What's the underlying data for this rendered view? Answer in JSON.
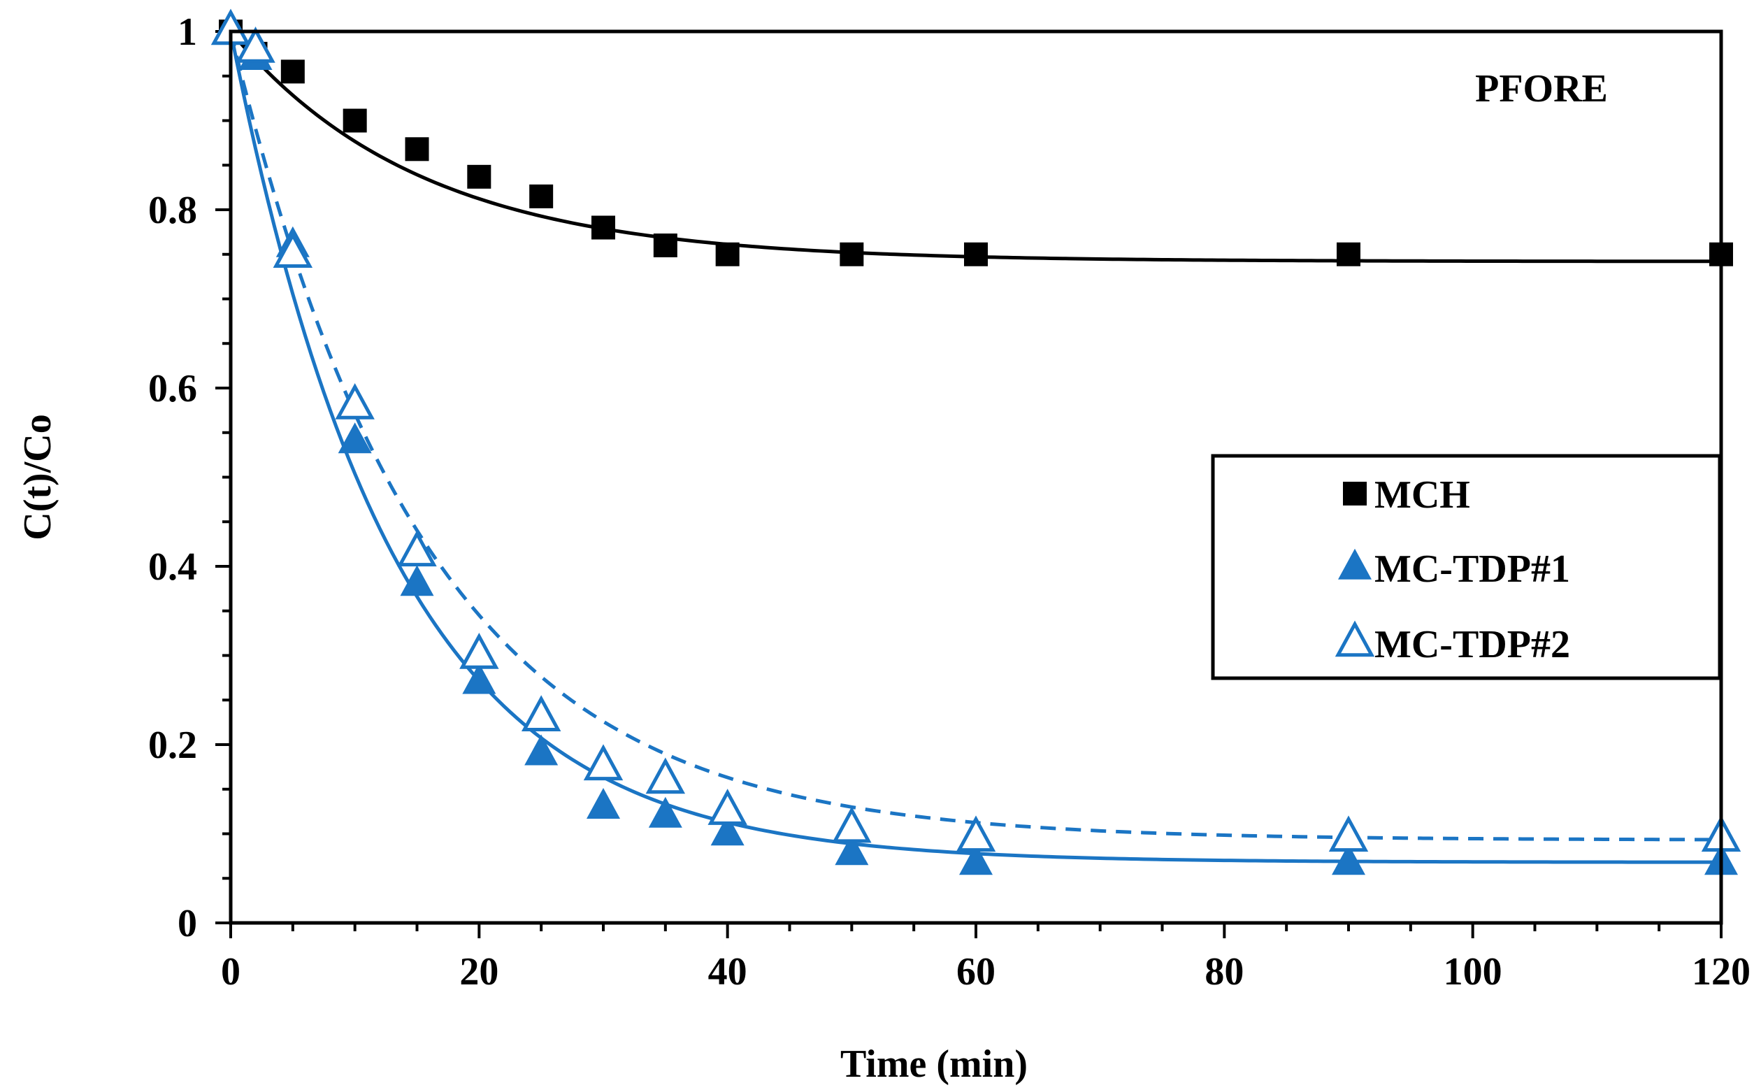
{
  "chart_data": {
    "type": "scatter",
    "title": "",
    "annotation": "PFORE",
    "xlabel": "Time (min)",
    "ylabel": "C(t)/Co",
    "xlim": [
      0,
      120
    ],
    "ylim": [
      0,
      1
    ],
    "x_ticks": [
      0,
      20,
      40,
      60,
      80,
      100,
      120
    ],
    "x_tick_labels": [
      "0",
      "20",
      "40",
      "60",
      "80",
      "100",
      "120"
    ],
    "y_ticks": [
      0,
      0.2,
      0.4,
      0.6,
      0.8,
      1
    ],
    "y_tick_labels": [
      "0",
      "0.2",
      "0.4",
      "0.6",
      "0.8",
      "1"
    ],
    "x_minor_step": 5,
    "y_minor_step": 0.05,
    "grid": false,
    "legend_position": "right-middle",
    "series": [
      {
        "name": "MCH",
        "marker": "square-filled",
        "color": "#000000",
        "x": [
          0,
          2,
          5,
          10,
          15,
          20,
          25,
          30,
          35,
          40,
          50,
          60,
          90,
          120
        ],
        "y": [
          1.0,
          0.975,
          0.955,
          0.9,
          0.868,
          0.837,
          0.815,
          0.78,
          0.76,
          0.75,
          0.75,
          0.75,
          0.75,
          0.75
        ],
        "fit": {
          "model": "C = qe + (1 - qe) * exp(-k t)",
          "qe": 0.742,
          "k": 0.065,
          "line_style": "solid"
        }
      },
      {
        "name": "MC-TDP#1",
        "marker": "triangle-filled",
        "color": "#1B75C4",
        "x": [
          0,
          2,
          5,
          10,
          15,
          20,
          25,
          30,
          35,
          40,
          50,
          60,
          90,
          120
        ],
        "y": [
          1.0,
          0.97,
          0.76,
          0.54,
          0.38,
          0.27,
          0.19,
          0.13,
          0.12,
          0.1,
          0.078,
          0.067,
          0.067,
          0.067
        ],
        "fit": {
          "model": "C = qe + (1 - qe) * exp(-k t)",
          "qe": 0.068,
          "k": 0.076,
          "line_style": "solid"
        }
      },
      {
        "name": "MC-TDP#2",
        "marker": "triangle-open",
        "color": "#1B75C4",
        "x": [
          0,
          2,
          5,
          10,
          15,
          20,
          25,
          30,
          35,
          40,
          50,
          60,
          90,
          120
        ],
        "y": [
          1.0,
          0.98,
          0.75,
          0.58,
          0.415,
          0.3,
          0.23,
          0.175,
          0.16,
          0.125,
          0.105,
          0.095,
          0.095,
          0.095
        ],
        "fit": {
          "model": "C = qe + (1 - qe) * exp(-k t)",
          "qe": 0.093,
          "k": 0.064,
          "line_style": "dashed"
        }
      }
    ]
  }
}
